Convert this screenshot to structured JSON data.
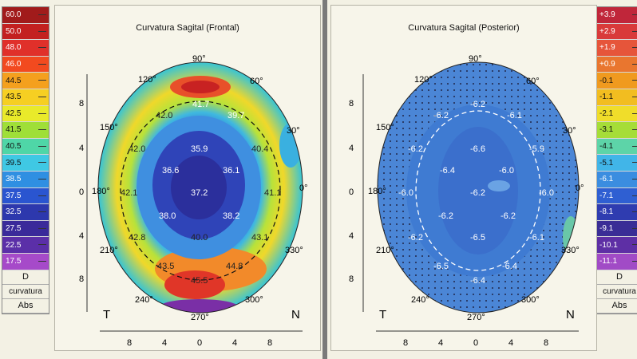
{
  "left_scale": {
    "values": [
      "60.0",
      "50.0",
      "48.0",
      "46.0",
      "44.5",
      "43.5",
      "42.5",
      "41.5",
      "40.5",
      "39.5",
      "38.5",
      "37.5",
      "32.5",
      "27.5",
      "22.5",
      "17.5"
    ],
    "colors": [
      "#a11b1b",
      "#c32020",
      "#e0302a",
      "#f24a1f",
      "#f4a01e",
      "#f6cf22",
      "#e9ea2a",
      "#9fdf38",
      "#4fd6a7",
      "#3fc8e4",
      "#2f8fe2",
      "#2a55d0",
      "#2d38ad",
      "#3a2a9a",
      "#5b2fa8",
      "#a64ac9"
    ],
    "unit": "D",
    "label1": "curvatura",
    "label2": "Abs"
  },
  "right_scale": {
    "values": [
      "+3.9",
      "+2.9",
      "+1.9",
      "+0.9",
      "-0.1",
      "-1.1",
      "-2.1",
      "-3.1",
      "-4.1",
      "-5.1",
      "-6.1",
      "-7.1",
      "-8.1",
      "-9.1",
      "-10.1",
      "-11.1"
    ],
    "colors": [
      "#c0263a",
      "#d93a3a",
      "#e6553a",
      "#e9762f",
      "#f09a1f",
      "#f2bd20",
      "#f0dd2a",
      "#a6dd38",
      "#5dd4a8",
      "#41b5e8",
      "#3b8de0",
      "#2f5fd2",
      "#2f3cb0",
      "#3a2d96",
      "#5e2fa5",
      "#a14bc6"
    ],
    "unit": "D",
    "label1": "curvatura",
    "label2": "Abs"
  },
  "maps": [
    {
      "title": "Curvatura Sagital (Frontal)",
      "angles": {
        "a90": "90°",
        "a60": "60°",
        "a30": "30°",
        "a0": "0°",
        "a330": "330°",
        "a300": "300°",
        "a270": "270°",
        "a240": "240°",
        "a210": "210°",
        "a180": "180°",
        "a150": "150°",
        "a120": "120°"
      },
      "y_ticks": [
        "8",
        "4",
        "0",
        "4",
        "8"
      ],
      "x_ticks": [
        "8",
        "4",
        "0",
        "4",
        "8"
      ],
      "T": "T",
      "N": "N",
      "values": [
        "41.7",
        "42.0",
        "39.7",
        "42.0",
        "35.9",
        "40.4",
        "36.6",
        "36.1",
        "42.1",
        "37.2",
        "41.1",
        "38.0",
        "38.2",
        "42.8",
        "40.0",
        "43.1",
        "43.5",
        "44.8",
        "45.5"
      ]
    },
    {
      "title": "Curvatura Sagital (Posterior)",
      "angles": {
        "a90": "90°",
        "a60": "60°",
        "a30": "30°",
        "a0": "0°",
        "a330": "330°",
        "a300": "300°",
        "a270": "270°",
        "a240": "240°",
        "a210": "210°",
        "a180": "180°",
        "a150": "150°",
        "a120": "120°"
      },
      "y_ticks": [
        "8",
        "4",
        "0",
        "4",
        "8"
      ],
      "x_ticks": [
        "8",
        "4",
        "0",
        "4",
        "8"
      ],
      "T": "T",
      "N": "N",
      "values": [
        "-6.2",
        "-6.2",
        "-6.1",
        "-6.2",
        "-6.6",
        "-5.9",
        "-6.4",
        "-6.0",
        "-6.0",
        "-6.2",
        "-6.0",
        "-6.2",
        "-6.2",
        "-6.2",
        "-6.5",
        "-6.1",
        "-6.5",
        "-6.4",
        "-6.4"
      ]
    }
  ]
}
